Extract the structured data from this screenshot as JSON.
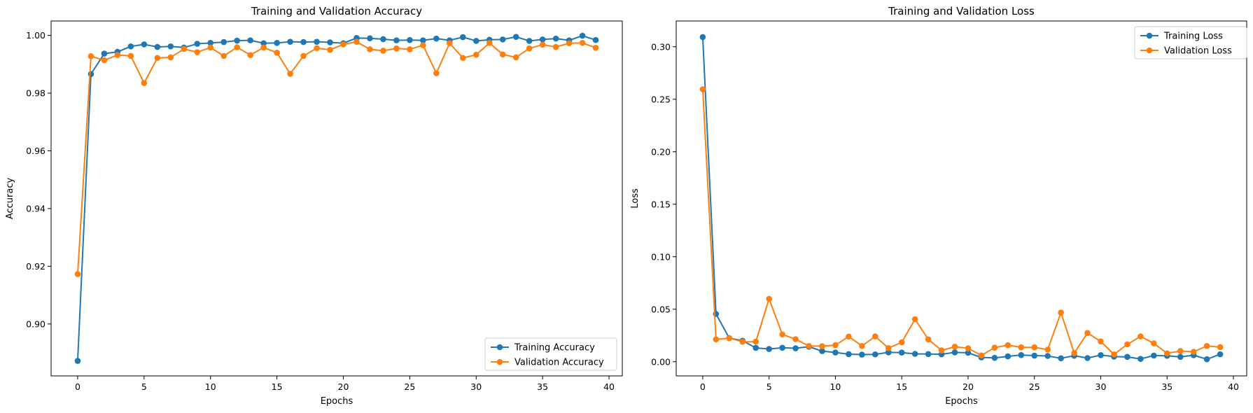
{
  "chart_data": [
    {
      "type": "line",
      "title": "Training and Validation Accuracy",
      "xlabel": "Epochs",
      "ylabel": "Accuracy",
      "xlim": [
        -2.0,
        41.0
      ],
      "ylim": [
        0.882,
        1.005
      ],
      "xticks": [
        0,
        5,
        10,
        15,
        20,
        25,
        30,
        35,
        40
      ],
      "xtick_labels": [
        "0",
        "5",
        "10",
        "15",
        "20",
        "25",
        "30",
        "35",
        "40"
      ],
      "yticks": [
        0.9,
        0.92,
        0.94,
        0.96,
        0.98,
        1.0
      ],
      "ytick_labels": [
        "0.90",
        "0.92",
        "0.94",
        "0.96",
        "0.98",
        "1.00"
      ],
      "legend_position": "lower right",
      "x": [
        0,
        1,
        2,
        3,
        4,
        5,
        6,
        7,
        8,
        9,
        10,
        11,
        12,
        13,
        14,
        15,
        16,
        17,
        18,
        19,
        20,
        21,
        22,
        23,
        24,
        25,
        26,
        27,
        28,
        29,
        30,
        31,
        32,
        33,
        34,
        35,
        36,
        37,
        38,
        39
      ],
      "series": [
        {
          "name": "Training Accuracy",
          "color": "#1f77b4",
          "values": [
            0.8872,
            0.9866,
            0.9937,
            0.9943,
            0.9962,
            0.9969,
            0.996,
            0.9962,
            0.9958,
            0.9971,
            0.9974,
            0.9977,
            0.9982,
            0.9983,
            0.9973,
            0.9974,
            0.9978,
            0.9977,
            0.9978,
            0.9976,
            0.9973,
            0.9991,
            0.999,
            0.9987,
            0.9983,
            0.9984,
            0.9983,
            0.9989,
            0.9983,
            0.9994,
            0.9981,
            0.9985,
            0.9986,
            0.9995,
            0.9981,
            0.9986,
            0.9989,
            0.9983,
            0.9999,
            0.9984
          ]
        },
        {
          "name": "Validation Accuracy",
          "color": "#ff7f0e",
          "values": [
            0.9173,
            0.9928,
            0.9914,
            0.9932,
            0.9929,
            0.9835,
            0.9922,
            0.9924,
            0.9953,
            0.9942,
            0.9958,
            0.9929,
            0.9959,
            0.9932,
            0.9958,
            0.994,
            0.9867,
            0.9929,
            0.9956,
            0.995,
            0.9969,
            0.9978,
            0.9952,
            0.9947,
            0.9955,
            0.9952,
            0.9966,
            0.9869,
            0.9973,
            0.9922,
            0.9933,
            0.9974,
            0.9934,
            0.9924,
            0.9955,
            0.9968,
            0.996,
            0.9973,
            0.9974,
            0.9957
          ]
        }
      ]
    },
    {
      "type": "line",
      "title": "Training and Validation Loss",
      "xlabel": "Epochs",
      "ylabel": "Loss",
      "xlim": [
        -2.0,
        41.0
      ],
      "ylim": [
        -0.0135,
        0.3245
      ],
      "xticks": [
        0,
        5,
        10,
        15,
        20,
        25,
        30,
        35,
        40
      ],
      "xtick_labels": [
        "0",
        "5",
        "10",
        "15",
        "20",
        "25",
        "30",
        "35",
        "40"
      ],
      "yticks": [
        0.0,
        0.05,
        0.1,
        0.15,
        0.2,
        0.25,
        0.3
      ],
      "ytick_labels": [
        "0.00",
        "0.05",
        "0.10",
        "0.15",
        "0.20",
        "0.25",
        "0.30"
      ],
      "legend_position": "upper right",
      "x": [
        0,
        1,
        2,
        3,
        4,
        5,
        6,
        7,
        8,
        9,
        10,
        11,
        12,
        13,
        14,
        15,
        16,
        17,
        18,
        19,
        20,
        21,
        22,
        23,
        24,
        25,
        26,
        27,
        28,
        29,
        30,
        31,
        32,
        33,
        34,
        35,
        36,
        37,
        38,
        39
      ],
      "series": [
        {
          "name": "Training Loss",
          "color": "#1f77b4",
          "values": [
            0.3092,
            0.0455,
            0.0225,
            0.02,
            0.0132,
            0.0121,
            0.0133,
            0.0128,
            0.0143,
            0.0101,
            0.0088,
            0.0072,
            0.0068,
            0.007,
            0.0089,
            0.0087,
            0.0075,
            0.0073,
            0.0071,
            0.0089,
            0.0085,
            0.0041,
            0.0037,
            0.0051,
            0.0064,
            0.0058,
            0.0055,
            0.0033,
            0.0057,
            0.0035,
            0.0063,
            0.0049,
            0.0046,
            0.0027,
            0.0059,
            0.0057,
            0.0046,
            0.0062,
            0.0024,
            0.0071
          ]
        },
        {
          "name": "Validation Loss",
          "color": "#ff7f0e",
          "values": [
            0.2595,
            0.0213,
            0.0225,
            0.019,
            0.0191,
            0.0599,
            0.026,
            0.0215,
            0.015,
            0.0148,
            0.0158,
            0.024,
            0.015,
            0.0241,
            0.013,
            0.0185,
            0.0405,
            0.0213,
            0.0108,
            0.0143,
            0.0128,
            0.006,
            0.0134,
            0.0158,
            0.0137,
            0.0137,
            0.0115,
            0.0468,
            0.0082,
            0.0274,
            0.0193,
            0.007,
            0.0165,
            0.0241,
            0.0175,
            0.008,
            0.0102,
            0.0095,
            0.015,
            0.0139
          ]
        }
      ]
    }
  ]
}
